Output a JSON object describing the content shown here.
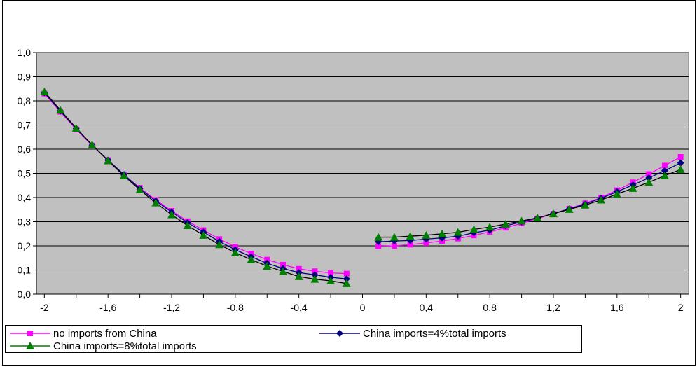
{
  "chart_data": {
    "type": "line",
    "title": "",
    "xlabel": "",
    "ylabel": "",
    "ylim": [
      0,
      1.0
    ],
    "xlim": [
      -2.05,
      2.05
    ],
    "grid": true,
    "legend_position": "bottom-left",
    "y_ticks": [
      "0,0",
      "0,1",
      "0,2",
      "0,3",
      "0,4",
      "0,5",
      "0,6",
      "0,7",
      "0,8",
      "0,9",
      "1,0"
    ],
    "y_tick_values": [
      0,
      0.1,
      0.2,
      0.3,
      0.4,
      0.5,
      0.6,
      0.7,
      0.8,
      0.9,
      1.0
    ],
    "x_ticks": [
      "-2",
      "-1,6",
      "-1,2",
      "-0,8",
      "-0,4",
      "0",
      "0,4",
      "0,8",
      "1,2",
      "1,6",
      "2"
    ],
    "x_tick_values": [
      -2,
      -1.6,
      -1.2,
      -0.8,
      -0.4,
      0,
      0.4,
      0.8,
      1.2,
      1.6,
      2
    ],
    "x": [
      -2.0,
      -1.9,
      -1.8,
      -1.7,
      -1.6,
      -1.5,
      -1.4,
      -1.3,
      -1.2,
      -1.1,
      -1.0,
      -0.9,
      -0.8,
      -0.7,
      -0.6,
      -0.5,
      -0.4,
      -0.3,
      -0.2,
      -0.1,
      0.1,
      0.2,
      0.3,
      0.4,
      0.5,
      0.6,
      0.7,
      0.8,
      0.9,
      1.0,
      1.1,
      1.2,
      1.3,
      1.4,
      1.5,
      1.6,
      1.7,
      1.8,
      1.9,
      2.0
    ],
    "series": [
      {
        "name": "no imports from China",
        "color": "#ff00ff",
        "line_color": "#ff00ff",
        "marker": "square",
        "values": [
          0.83,
          0.755,
          0.682,
          0.615,
          0.555,
          0.494,
          0.44,
          0.39,
          0.345,
          0.302,
          0.265,
          0.228,
          0.196,
          0.168,
          0.143,
          0.122,
          0.105,
          0.095,
          0.088,
          0.085,
          0.198,
          0.2,
          0.205,
          0.212,
          0.22,
          0.23,
          0.243,
          0.258,
          0.275,
          0.293,
          0.313,
          0.333,
          0.354,
          0.376,
          0.4,
          0.43,
          0.463,
          0.497,
          0.532,
          0.568
        ]
      },
      {
        "name": "China imports=4%total imports",
        "color": "#000080",
        "line_color": "#000080",
        "marker": "diamond",
        "values": [
          0.834,
          0.758,
          0.685,
          0.617,
          0.555,
          0.495,
          0.437,
          0.386,
          0.34,
          0.296,
          0.257,
          0.218,
          0.184,
          0.155,
          0.128,
          0.106,
          0.089,
          0.08,
          0.07,
          0.063,
          0.217,
          0.22,
          0.222,
          0.228,
          0.233,
          0.24,
          0.254,
          0.265,
          0.283,
          0.299,
          0.315,
          0.334,
          0.353,
          0.373,
          0.397,
          0.424,
          0.452,
          0.481,
          0.511,
          0.543
        ]
      },
      {
        "name": "China imports=8%total imports",
        "color": "#008000",
        "line_color": "#000000",
        "marker": "triangle",
        "values": [
          0.838,
          0.762,
          0.687,
          0.618,
          0.552,
          0.49,
          0.432,
          0.378,
          0.329,
          0.284,
          0.244,
          0.205,
          0.172,
          0.143,
          0.116,
          0.094,
          0.073,
          0.062,
          0.055,
          0.044,
          0.236,
          0.236,
          0.24,
          0.244,
          0.25,
          0.256,
          0.268,
          0.278,
          0.29,
          0.303,
          0.316,
          0.333,
          0.351,
          0.369,
          0.39,
          0.414,
          0.438,
          0.463,
          0.49,
          0.516
        ]
      }
    ]
  },
  "legend": {
    "item1_label": "no imports from China",
    "item2_label": "China imports=4%total imports",
    "item3_label": "China imports=8%total imports"
  }
}
